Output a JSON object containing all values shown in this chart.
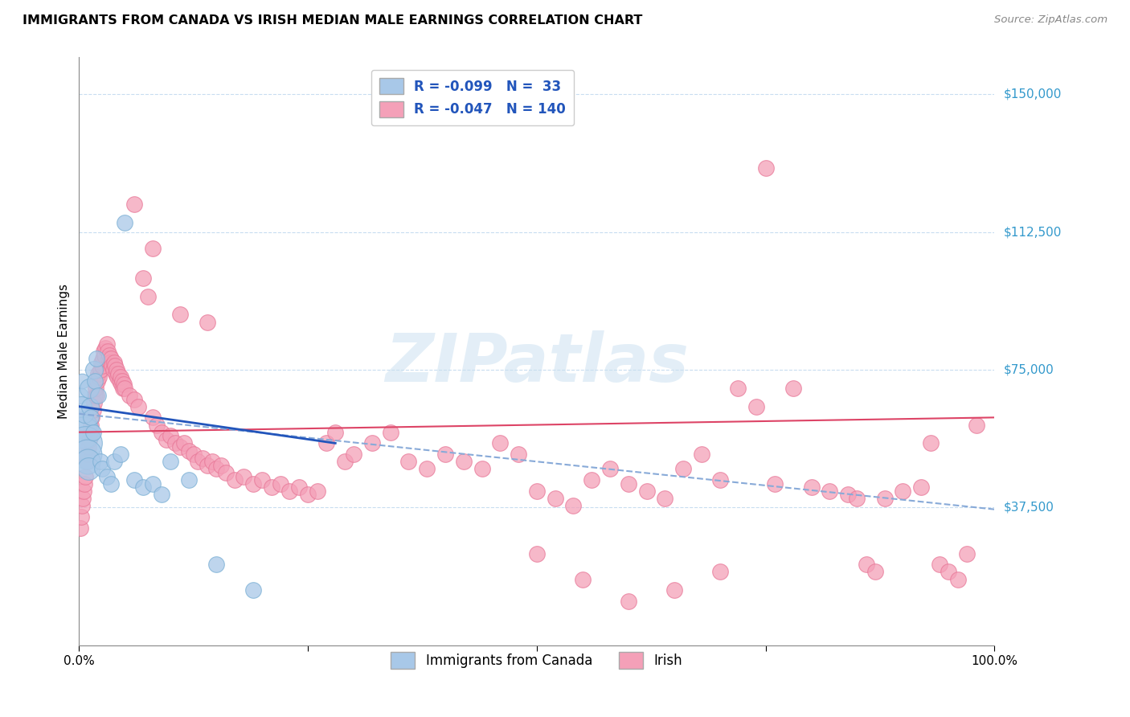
{
  "title": "IMMIGRANTS FROM CANADA VS IRISH MEDIAN MALE EARNINGS CORRELATION CHART",
  "source": "Source: ZipAtlas.com",
  "ylabel": "Median Male Earnings",
  "yticks": [
    0,
    37500,
    75000,
    112500,
    150000
  ],
  "xlim": [
    0,
    1
  ],
  "ylim": [
    0,
    160000
  ],
  "legend_bottom": [
    "Immigrants from Canada",
    "Irish"
  ],
  "canada_color": "#a8c8e8",
  "canada_edge_color": "#7aafd4",
  "irish_color": "#f4a0b8",
  "irish_edge_color": "#e87898",
  "canada_line_color": "#2255bb",
  "irish_line_color": "#dd4466",
  "dashed_line_color": "#88aad8",
  "watermark": "ZIPatlas",
  "background_color": "#ffffff",
  "grid_color": "#c8ddf0",
  "canada_solid_line": [
    [
      0,
      65000
    ],
    [
      0.28,
      55000
    ]
  ],
  "irish_solid_line": [
    [
      0,
      58000
    ],
    [
      1.0,
      62000
    ]
  ],
  "canada_dashed_line": [
    [
      0,
      63000
    ],
    [
      1.0,
      37000
    ]
  ],
  "canada_points": [
    [
      0.001,
      68000,
      200
    ],
    [
      0.002,
      65000,
      350
    ],
    [
      0.003,
      72000,
      180
    ],
    [
      0.004,
      60000,
      600
    ],
    [
      0.005,
      58000,
      800
    ],
    [
      0.006,
      63000,
      250
    ],
    [
      0.007,
      55000,
      900
    ],
    [
      0.008,
      52000,
      700
    ],
    [
      0.009,
      50000,
      500
    ],
    [
      0.01,
      48000,
      400
    ],
    [
      0.011,
      70000,
      300
    ],
    [
      0.012,
      65000,
      250
    ],
    [
      0.013,
      62000,
      200
    ],
    [
      0.015,
      58000,
      200
    ],
    [
      0.016,
      75000,
      250
    ],
    [
      0.017,
      72000,
      200
    ],
    [
      0.019,
      78000,
      200
    ],
    [
      0.021,
      68000,
      200
    ],
    [
      0.023,
      50000,
      200
    ],
    [
      0.025,
      48000,
      200
    ],
    [
      0.03,
      46000,
      200
    ],
    [
      0.035,
      44000,
      200
    ],
    [
      0.038,
      50000,
      200
    ],
    [
      0.045,
      52000,
      200
    ],
    [
      0.05,
      115000,
      200
    ],
    [
      0.06,
      45000,
      200
    ],
    [
      0.07,
      43000,
      200
    ],
    [
      0.08,
      44000,
      200
    ],
    [
      0.09,
      41000,
      200
    ],
    [
      0.1,
      50000,
      200
    ],
    [
      0.12,
      45000,
      200
    ],
    [
      0.15,
      22000,
      200
    ],
    [
      0.19,
      15000,
      200
    ]
  ],
  "irish_points": [
    [
      0.001,
      32000,
      200
    ],
    [
      0.002,
      35000,
      200
    ],
    [
      0.003,
      38000,
      200
    ],
    [
      0.004,
      40000,
      200
    ],
    [
      0.005,
      42000,
      200
    ],
    [
      0.006,
      44000,
      200
    ],
    [
      0.007,
      46000,
      200
    ],
    [
      0.008,
      50000,
      200
    ],
    [
      0.009,
      52000,
      200
    ],
    [
      0.01,
      54000,
      200
    ],
    [
      0.011,
      56000,
      200
    ],
    [
      0.012,
      58000,
      200
    ],
    [
      0.013,
      60000,
      200
    ],
    [
      0.014,
      62000,
      200
    ],
    [
      0.015,
      64000,
      200
    ],
    [
      0.016,
      66000,
      200
    ],
    [
      0.017,
      68000,
      200
    ],
    [
      0.018,
      70000,
      200
    ],
    [
      0.019,
      68000,
      200
    ],
    [
      0.02,
      72000,
      200
    ],
    [
      0.021,
      74000,
      200
    ],
    [
      0.022,
      73000,
      200
    ],
    [
      0.023,
      75000,
      200
    ],
    [
      0.024,
      77000,
      200
    ],
    [
      0.025,
      76000,
      200
    ],
    [
      0.026,
      78000,
      200
    ],
    [
      0.027,
      80000,
      200
    ],
    [
      0.028,
      79000,
      200
    ],
    [
      0.029,
      81000,
      200
    ],
    [
      0.03,
      82000,
      200
    ],
    [
      0.031,
      80000,
      200
    ],
    [
      0.032,
      78000,
      200
    ],
    [
      0.033,
      79000,
      200
    ],
    [
      0.034,
      77000,
      200
    ],
    [
      0.035,
      78000,
      200
    ],
    [
      0.036,
      76000,
      200
    ],
    [
      0.037,
      75000,
      200
    ],
    [
      0.038,
      77000,
      200
    ],
    [
      0.039,
      76000,
      200
    ],
    [
      0.04,
      74000,
      200
    ],
    [
      0.041,
      75000,
      200
    ],
    [
      0.042,
      73000,
      200
    ],
    [
      0.043,
      74000,
      200
    ],
    [
      0.044,
      72000,
      200
    ],
    [
      0.045,
      73000,
      200
    ],
    [
      0.046,
      71000,
      200
    ],
    [
      0.047,
      72000,
      200
    ],
    [
      0.048,
      70000,
      200
    ],
    [
      0.049,
      71000,
      200
    ],
    [
      0.05,
      70000,
      200
    ],
    [
      0.055,
      68000,
      200
    ],
    [
      0.06,
      67000,
      200
    ],
    [
      0.065,
      65000,
      200
    ],
    [
      0.07,
      100000,
      200
    ],
    [
      0.075,
      95000,
      200
    ],
    [
      0.08,
      62000,
      200
    ],
    [
      0.085,
      60000,
      200
    ],
    [
      0.09,
      58000,
      200
    ],
    [
      0.095,
      56000,
      200
    ],
    [
      0.1,
      57000,
      200
    ],
    [
      0.105,
      55000,
      200
    ],
    [
      0.11,
      54000,
      200
    ],
    [
      0.115,
      55000,
      200
    ],
    [
      0.12,
      53000,
      200
    ],
    [
      0.125,
      52000,
      200
    ],
    [
      0.13,
      50000,
      200
    ],
    [
      0.135,
      51000,
      200
    ],
    [
      0.14,
      49000,
      200
    ],
    [
      0.145,
      50000,
      200
    ],
    [
      0.15,
      48000,
      200
    ],
    [
      0.155,
      49000,
      200
    ],
    [
      0.16,
      47000,
      200
    ],
    [
      0.17,
      45000,
      200
    ],
    [
      0.18,
      46000,
      200
    ],
    [
      0.19,
      44000,
      200
    ],
    [
      0.2,
      45000,
      200
    ],
    [
      0.21,
      43000,
      200
    ],
    [
      0.22,
      44000,
      200
    ],
    [
      0.23,
      42000,
      200
    ],
    [
      0.24,
      43000,
      200
    ],
    [
      0.25,
      41000,
      200
    ],
    [
      0.26,
      42000,
      200
    ],
    [
      0.27,
      55000,
      200
    ],
    [
      0.28,
      58000,
      200
    ],
    [
      0.29,
      50000,
      200
    ],
    [
      0.3,
      52000,
      200
    ],
    [
      0.32,
      55000,
      200
    ],
    [
      0.34,
      58000,
      200
    ],
    [
      0.36,
      50000,
      200
    ],
    [
      0.38,
      48000,
      200
    ],
    [
      0.4,
      52000,
      200
    ],
    [
      0.42,
      50000,
      200
    ],
    [
      0.44,
      48000,
      200
    ],
    [
      0.46,
      55000,
      200
    ],
    [
      0.48,
      52000,
      200
    ],
    [
      0.5,
      42000,
      200
    ],
    [
      0.52,
      40000,
      200
    ],
    [
      0.54,
      38000,
      200
    ],
    [
      0.56,
      45000,
      200
    ],
    [
      0.58,
      48000,
      200
    ],
    [
      0.6,
      44000,
      200
    ],
    [
      0.62,
      42000,
      200
    ],
    [
      0.64,
      40000,
      200
    ],
    [
      0.66,
      48000,
      200
    ],
    [
      0.68,
      52000,
      200
    ],
    [
      0.7,
      45000,
      200
    ],
    [
      0.72,
      70000,
      200
    ],
    [
      0.74,
      65000,
      200
    ],
    [
      0.76,
      44000,
      200
    ],
    [
      0.78,
      70000,
      200
    ],
    [
      0.8,
      43000,
      200
    ],
    [
      0.82,
      42000,
      200
    ],
    [
      0.84,
      41000,
      200
    ],
    [
      0.85,
      40000,
      200
    ],
    [
      0.86,
      22000,
      200
    ],
    [
      0.87,
      20000,
      200
    ],
    [
      0.88,
      40000,
      200
    ],
    [
      0.9,
      42000,
      200
    ],
    [
      0.92,
      43000,
      200
    ],
    [
      0.93,
      55000,
      200
    ],
    [
      0.94,
      22000,
      200
    ],
    [
      0.95,
      20000,
      200
    ],
    [
      0.96,
      18000,
      200
    ],
    [
      0.97,
      25000,
      200
    ],
    [
      0.75,
      130000,
      200
    ],
    [
      0.06,
      120000,
      200
    ],
    [
      0.08,
      108000,
      200
    ],
    [
      0.11,
      90000,
      200
    ],
    [
      0.14,
      88000,
      200
    ],
    [
      0.5,
      25000,
      200
    ],
    [
      0.55,
      18000,
      200
    ],
    [
      0.6,
      12000,
      200
    ],
    [
      0.65,
      15000,
      200
    ],
    [
      0.7,
      20000,
      200
    ],
    [
      0.98,
      60000,
      200
    ]
  ]
}
